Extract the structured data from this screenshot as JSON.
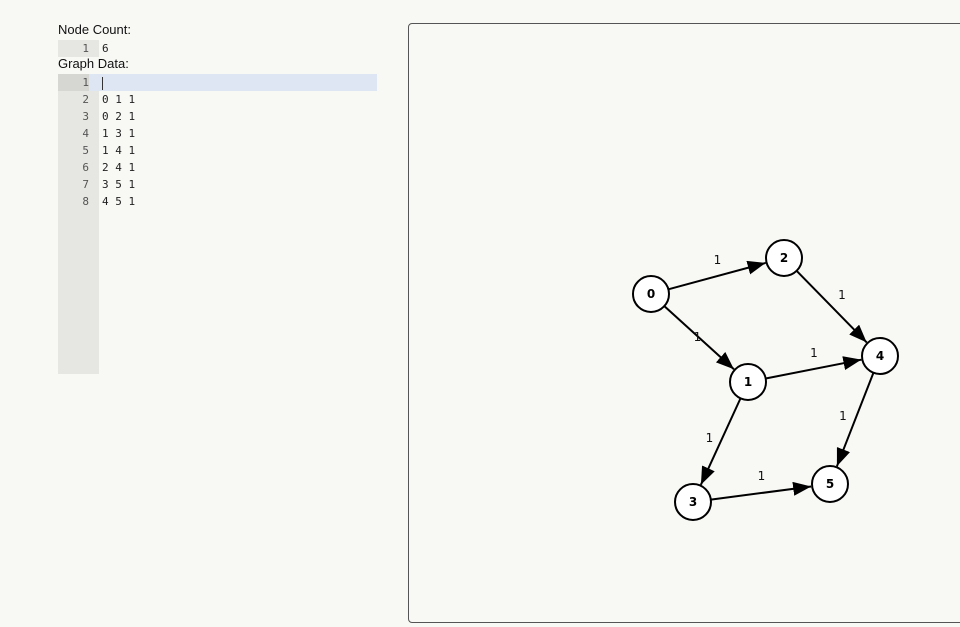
{
  "node_count": {
    "label": "Node Count:",
    "lines": [
      "6"
    ]
  },
  "graph_data": {
    "label": "Graph Data:",
    "lines": [
      "",
      "0 1 1",
      "0 2 1",
      "1 3 1",
      "1 4 1",
      "2 4 1",
      "3 5 1",
      "4 5 1"
    ]
  },
  "graph": {
    "nodes": [
      {
        "id": "0",
        "label": "0"
      },
      {
        "id": "1",
        "label": "1"
      },
      {
        "id": "2",
        "label": "2"
      },
      {
        "id": "3",
        "label": "3"
      },
      {
        "id": "4",
        "label": "4"
      },
      {
        "id": "5",
        "label": "5"
      }
    ],
    "edges": [
      {
        "from": "0",
        "to": "1",
        "weight": "1"
      },
      {
        "from": "0",
        "to": "2",
        "weight": "1"
      },
      {
        "from": "1",
        "to": "3",
        "weight": "1"
      },
      {
        "from": "1",
        "to": "4",
        "weight": "1"
      },
      {
        "from": "2",
        "to": "4",
        "weight": "1"
      },
      {
        "from": "3",
        "to": "5",
        "weight": "1"
      },
      {
        "from": "4",
        "to": "5",
        "weight": "1"
      }
    ]
  },
  "colors": {
    "stroke": "#000000",
    "node_fill": "#ffffff",
    "active_line": "#dde6f2"
  }
}
